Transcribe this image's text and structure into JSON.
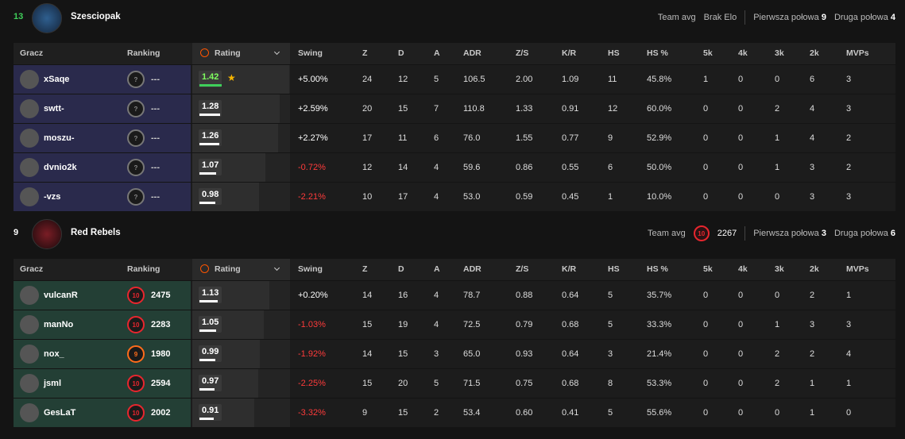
{
  "columns": {
    "player": "Gracz",
    "ranking": "Ranking",
    "rating": "Rating",
    "swing": "Swing",
    "stats": [
      "Z",
      "D",
      "A",
      "ADR",
      "Z/S",
      "K/R",
      "HS",
      "HS %",
      "5k",
      "4k",
      "3k",
      "2k",
      "MVPs"
    ]
  },
  "teams": [
    {
      "score": "13",
      "name": "Szesciopak",
      "team_avg_label": "Team avg",
      "elo": "Brak Elo",
      "first_half_label": "Pierwsza połowa",
      "first_half": "9",
      "second_half_label": "Druga połowa",
      "second_half": "4",
      "rows": [
        {
          "name": "xSaqe",
          "level": "?",
          "elo": "---",
          "rating": "1.42",
          "swing": "+5.00%",
          "stats": [
            "24",
            "12",
            "5",
            "106.5",
            "2.00",
            "1.09",
            "11",
            "45.8%",
            "1",
            "0",
            "0",
            "6",
            "3"
          ]
        },
        {
          "name": "swtt-",
          "level": "?",
          "elo": "---",
          "rating": "1.28",
          "swing": "+2.59%",
          "stats": [
            "20",
            "15",
            "7",
            "110.8",
            "1.33",
            "0.91",
            "12",
            "60.0%",
            "0",
            "0",
            "2",
            "4",
            "3"
          ]
        },
        {
          "name": "moszu-",
          "level": "?",
          "elo": "---",
          "rating": "1.26",
          "swing": "+2.27%",
          "stats": [
            "17",
            "11",
            "6",
            "76.0",
            "1.55",
            "0.77",
            "9",
            "52.9%",
            "0",
            "0",
            "1",
            "4",
            "2"
          ]
        },
        {
          "name": "dvnio2k",
          "level": "?",
          "elo": "---",
          "rating": "1.07",
          "swing": "-0.72%",
          "stats": [
            "12",
            "14",
            "4",
            "59.6",
            "0.86",
            "0.55",
            "6",
            "50.0%",
            "0",
            "0",
            "1",
            "3",
            "2"
          ]
        },
        {
          "name": "-vzs",
          "level": "?",
          "elo": "---",
          "rating": "0.98",
          "swing": "-2.21%",
          "stats": [
            "10",
            "17",
            "4",
            "53.0",
            "0.59",
            "0.45",
            "1",
            "10.0%",
            "0",
            "0",
            "0",
            "3",
            "3"
          ]
        }
      ]
    },
    {
      "score": "9",
      "name": "Red Rebels",
      "team_avg_label": "Team avg",
      "level": "10",
      "elo": "2267",
      "first_half_label": "Pierwsza połowa",
      "first_half": "3",
      "second_half_label": "Druga połowa",
      "second_half": "6",
      "rows": [
        {
          "name": "vulcanR",
          "level": "10",
          "elo": "2475",
          "rating": "1.13",
          "swing": "+0.20%",
          "stats": [
            "14",
            "16",
            "4",
            "78.7",
            "0.88",
            "0.64",
            "5",
            "35.7%",
            "0",
            "0",
            "0",
            "2",
            "1"
          ]
        },
        {
          "name": "manNo",
          "level": "10",
          "elo": "2283",
          "rating": "1.05",
          "swing": "-1.03%",
          "stats": [
            "15",
            "19",
            "4",
            "72.5",
            "0.79",
            "0.68",
            "5",
            "33.3%",
            "0",
            "0",
            "1",
            "3",
            "3"
          ]
        },
        {
          "name": "nox_",
          "level": "9",
          "elo": "1980",
          "rating": "0.99",
          "swing": "-1.92%",
          "stats": [
            "14",
            "15",
            "3",
            "65.0",
            "0.93",
            "0.64",
            "3",
            "21.4%",
            "0",
            "0",
            "2",
            "2",
            "4"
          ]
        },
        {
          "name": "jsml",
          "level": "10",
          "elo": "2594",
          "rating": "0.97",
          "swing": "-2.25%",
          "stats": [
            "15",
            "20",
            "5",
            "71.5",
            "0.75",
            "0.68",
            "8",
            "53.3%",
            "0",
            "0",
            "2",
            "1",
            "1"
          ]
        },
        {
          "name": "GesLaT",
          "level": "10",
          "elo": "2002",
          "rating": "0.91",
          "swing": "-3.32%",
          "stats": [
            "9",
            "15",
            "2",
            "53.4",
            "0.60",
            "0.41",
            "5",
            "55.6%",
            "0",
            "0",
            "0",
            "1",
            "0"
          ]
        }
      ]
    }
  ]
}
